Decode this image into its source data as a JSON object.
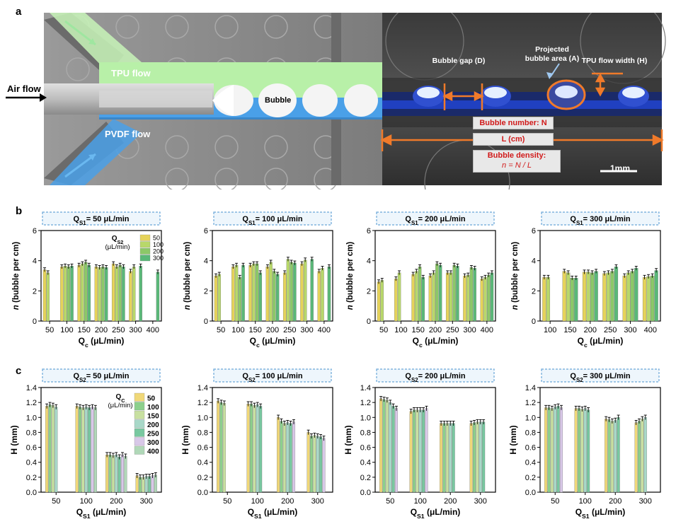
{
  "panel_a": {
    "letter": "a",
    "air_flow": "Air flow",
    "tpu_flow": "TPU flow",
    "pvdf_flow": "PVDF flow",
    "bubble": "Bubble",
    "bubble_gap": "Bubble gap (D)",
    "projected_area_line1": "Projected",
    "projected_area_line2": "bubble area (A)",
    "tpu_width": "TPU flow width (H)",
    "bubble_number": "Bubble number: N",
    "length": "L (cm)",
    "density_line1": "Bubble density:",
    "density_line2": "n = N / L",
    "scale": "1mm",
    "colors": {
      "tpu": "#b8f0a8",
      "pvdf": "#4aa0e8",
      "plate": "#8a8a8a",
      "arrow": "#f07a2a",
      "label": "#d11a1a"
    }
  },
  "panel_b": {
    "letter": "b",
    "legend_title_line1": "Q",
    "legend_title_sub": "S2",
    "legend_title_line2": "(μL/min)",
    "legend": [
      "50",
      "100",
      "200",
      "300"
    ],
    "series_colors": [
      "#e6d35a",
      "#b8d86a",
      "#8cc868",
      "#5ab878"
    ]
  },
  "panel_c": {
    "letter": "c",
    "legend_title_line1": "Q",
    "legend_title_sub": "C",
    "legend_title_line2": "(μL/min)",
    "legend": [
      "50",
      "100",
      "150",
      "200",
      "250",
      "300",
      "400"
    ],
    "series_colors": [
      "#f0d878",
      "#8cd08c",
      "#c8e0a0",
      "#a8d8c8",
      "#78c8a0",
      "#d8c8e8",
      "#b0d8b8"
    ]
  },
  "chart_data": [
    {
      "type": "bar",
      "title_prefix": "Q",
      "title_sub": "S1",
      "title_suffix": "= 50 μL/min",
      "ylabel": "n (bubble per cm)",
      "xlabel_prefix": "Q",
      "xlabel_sub": "c",
      "xlabel_suffix": " (μL/min)",
      "ylim": [
        0,
        6
      ],
      "yticks": [
        "0",
        "2",
        "4",
        "6"
      ],
      "categories": [
        "50",
        "100",
        "150",
        "200",
        "250",
        "300",
        "400"
      ],
      "series": [
        {
          "name": "50",
          "values": [
            3.4,
            3.6,
            3.7,
            3.6,
            3.8,
            3.3,
            null
          ]
        },
        {
          "name": "100",
          "values": [
            3.2,
            3.65,
            3.8,
            3.55,
            3.6,
            3.6,
            null
          ]
        },
        {
          "name": "200",
          "values": [
            null,
            3.6,
            3.9,
            3.6,
            3.7,
            null,
            null
          ]
        },
        {
          "name": "300",
          "values": [
            null,
            3.65,
            3.7,
            3.55,
            3.6,
            3.65,
            3.25
          ]
        }
      ]
    },
    {
      "type": "bar",
      "title_prefix": "Q",
      "title_sub": "S1",
      "title_suffix": "= 100 μL/min",
      "ylabel": "n (bubble per cm)",
      "xlabel_prefix": "Q",
      "xlabel_sub": "c",
      "xlabel_suffix": " (μL/min)",
      "ylim": [
        0,
        6
      ],
      "yticks": [
        "0",
        "2",
        "4",
        "6"
      ],
      "categories": [
        "50",
        "100",
        "150",
        "200",
        "250",
        "300",
        "400"
      ],
      "series": [
        {
          "name": "50",
          "values": [
            3.0,
            3.6,
            3.7,
            3.6,
            3.2,
            3.8,
            3.3
          ]
        },
        {
          "name": "100",
          "values": [
            3.1,
            3.7,
            3.8,
            3.9,
            4.1,
            4.05,
            3.5
          ]
        },
        {
          "name": "200",
          "values": [
            null,
            2.9,
            3.8,
            3.3,
            3.9,
            null,
            null
          ]
        },
        {
          "name": "300",
          "values": [
            null,
            3.7,
            3.2,
            3.1,
            3.85,
            4.1,
            3.6
          ]
        }
      ]
    },
    {
      "type": "bar",
      "title_prefix": "Q",
      "title_sub": "S1",
      "title_suffix": "= 200 μL/min",
      "ylabel": "n (bubble per cm)",
      "xlabel_prefix": "Q",
      "xlabel_sub": "c",
      "xlabel_suffix": " (μL/min)",
      "ylim": [
        0,
        6
      ],
      "yticks": [
        "0",
        "2",
        "4",
        "6"
      ],
      "categories": [
        "50",
        "100",
        "150",
        "200",
        "250",
        "300",
        "400"
      ],
      "series": [
        {
          "name": "50",
          "values": [
            2.6,
            2.8,
            3.1,
            3.0,
            3.2,
            3.0,
            2.8
          ]
        },
        {
          "name": "100",
          "values": [
            2.7,
            3.2,
            3.3,
            3.2,
            3.2,
            3.05,
            2.9
          ]
        },
        {
          "name": "200",
          "values": [
            null,
            null,
            3.6,
            3.8,
            3.7,
            3.55,
            3.05
          ]
        },
        {
          "name": "300",
          "values": [
            null,
            null,
            2.9,
            3.7,
            3.65,
            3.5,
            3.2
          ]
        }
      ]
    },
    {
      "type": "bar",
      "title_prefix": "Q",
      "title_sub": "S1",
      "title_suffix": "= 300 μL/min",
      "ylabel": "n (bubble per cm)",
      "xlabel_prefix": "Q",
      "xlabel_sub": "c",
      "xlabel_suffix": " (μL/min)",
      "ylim": [
        0,
        6
      ],
      "yticks": [
        "0",
        "2",
        "4",
        "6"
      ],
      "categories": [
        "100",
        "150",
        "200",
        "250",
        "300",
        "400"
      ],
      "series": [
        {
          "name": "50",
          "values": [
            2.9,
            3.3,
            3.25,
            3.15,
            3.0,
            2.9
          ]
        },
        {
          "name": "100",
          "values": [
            2.9,
            3.2,
            3.25,
            3.2,
            3.2,
            2.95
          ]
        },
        {
          "name": "200",
          "values": [
            null,
            2.85,
            3.2,
            3.3,
            3.3,
            3.0
          ]
        },
        {
          "name": "300",
          "values": [
            null,
            2.85,
            3.3,
            3.6,
            3.5,
            3.35
          ]
        }
      ]
    },
    {
      "type": "bar",
      "title_prefix": "Q",
      "title_sub": "S2",
      "title_suffix": "= 50 μL/min",
      "ylabel": "H (mm)",
      "xlabel_prefix": "Q",
      "xlabel_sub": "S1",
      "xlabel_suffix": " (μL/min)",
      "ylim": [
        0,
        1.4
      ],
      "yticks": [
        "0.0",
        "0.2",
        "0.4",
        "0.6",
        "0.8",
        "1.0",
        "1.2",
        "1.4"
      ],
      "categories": [
        "50",
        "100",
        "200",
        "300"
      ],
      "series": [
        {
          "name": "50",
          "values": [
            1.15,
            1.15,
            0.5,
            0.22
          ]
        },
        {
          "name": "100",
          "values": [
            1.17,
            1.14,
            0.5,
            0.2
          ]
        },
        {
          "name": "150",
          "values": [
            1.16,
            1.13,
            0.49,
            0.2
          ]
        },
        {
          "name": "200",
          "values": [
            1.14,
            1.14,
            0.5,
            0.21
          ]
        },
        {
          "name": "250",
          "values": [
            null,
            1.13,
            0.47,
            0.21
          ]
        },
        {
          "name": "300",
          "values": [
            null,
            1.14,
            0.5,
            0.22
          ]
        },
        {
          "name": "400",
          "values": [
            null,
            1.13,
            0.48,
            0.23
          ]
        }
      ]
    },
    {
      "type": "bar",
      "title_prefix": "Q",
      "title_sub": "S2",
      "title_suffix": "= 100 μL/min",
      "ylabel": "H (mm)",
      "xlabel_prefix": "Q",
      "xlabel_sub": "S1",
      "xlabel_suffix": " (μL/min)",
      "ylim": [
        0,
        1.4
      ],
      "yticks": [
        "0.0",
        "0.2",
        "0.4",
        "0.6",
        "0.8",
        "1.0",
        "1.2",
        "1.4"
      ],
      "categories": [
        "50",
        "100",
        "200",
        "300"
      ],
      "series": [
        {
          "name": "50",
          "values": [
            1.22,
            1.18,
            1.0,
            0.8
          ]
        },
        {
          "name": "100",
          "values": [
            1.2,
            1.18,
            0.95,
            0.75
          ]
        },
        {
          "name": "150",
          "values": [
            1.19,
            1.16,
            0.92,
            0.76
          ]
        },
        {
          "name": "200",
          "values": [
            null,
            1.17,
            0.93,
            0.75
          ]
        },
        {
          "name": "250",
          "values": [
            null,
            1.15,
            0.92,
            0.74
          ]
        },
        {
          "name": "300",
          "values": [
            null,
            null,
            0.94,
            0.72
          ]
        },
        {
          "name": "400",
          "values": [
            null,
            null,
            null,
            null
          ]
        }
      ]
    },
    {
      "type": "bar",
      "title_prefix": "Q",
      "title_sub": "S2",
      "title_suffix": "= 200 μL/min",
      "ylabel": "H (mm)",
      "xlabel_prefix": "Q",
      "xlabel_sub": "S1",
      "xlabel_suffix": " (μL/min)",
      "ylim": [
        0,
        1.4
      ],
      "yticks": [
        "0.0",
        "0.2",
        "0.4",
        "0.6",
        "0.8",
        "1.0",
        "1.2",
        "1.4"
      ],
      "categories": [
        "50",
        "100",
        "200",
        "300"
      ],
      "series": [
        {
          "name": "50",
          "values": [
            1.25,
            1.08,
            0.92,
            0.92
          ]
        },
        {
          "name": "100",
          "values": [
            1.24,
            1.1,
            0.92,
            0.93
          ]
        },
        {
          "name": "150",
          "values": [
            1.23,
            1.1,
            0.92,
            0.94
          ]
        },
        {
          "name": "200",
          "values": [
            1.2,
            1.1,
            0.92,
            0.94
          ]
        },
        {
          "name": "250",
          "values": [
            1.15,
            1.1,
            0.92,
            0.94
          ]
        },
        {
          "name": "300",
          "values": [
            1.12,
            1.12,
            null,
            null
          ]
        },
        {
          "name": "400",
          "values": [
            null,
            null,
            null,
            null
          ]
        }
      ]
    },
    {
      "type": "bar",
      "title_prefix": "Q",
      "title_sub": "S2",
      "title_suffix": "= 300 μL/min",
      "ylabel": "H (mm)",
      "xlabel_prefix": "Q",
      "xlabel_sub": "S1",
      "xlabel_suffix": " (μL/min)",
      "ylim": [
        0,
        1.4
      ],
      "yticks": [
        "0.0",
        "0.2",
        "0.4",
        "0.6",
        "0.8",
        "1.0",
        "1.2",
        "1.4"
      ],
      "categories": [
        "50",
        "100",
        "200",
        "300"
      ],
      "series": [
        {
          "name": "50",
          "values": [
            1.13,
            1.12,
            0.98,
            0.93
          ]
        },
        {
          "name": "100",
          "values": [
            1.13,
            1.12,
            0.97,
            0.95
          ]
        },
        {
          "name": "150",
          "values": [
            1.12,
            1.11,
            0.95,
            0.98
          ]
        },
        {
          "name": "200",
          "values": [
            1.14,
            1.12,
            0.96,
            1.0
          ]
        },
        {
          "name": "250",
          "values": [
            1.15,
            1.1,
            1.0,
            null
          ]
        },
        {
          "name": "300",
          "values": [
            1.13,
            null,
            null,
            null
          ]
        },
        {
          "name": "400",
          "values": [
            null,
            null,
            null,
            null
          ]
        }
      ]
    }
  ]
}
